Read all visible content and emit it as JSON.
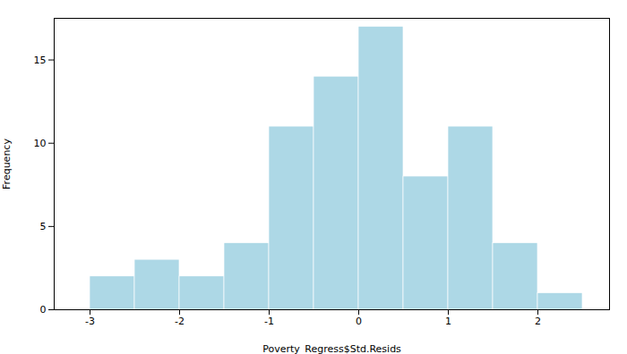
{
  "chart_data": {
    "type": "histogram",
    "bins": [
      -3.0,
      -2.5,
      -2.0,
      -1.5,
      -1.0,
      -0.5,
      0.0,
      0.5,
      1.0,
      1.5,
      2.0,
      2.5
    ],
    "values": [
      2,
      3,
      2,
      4,
      11,
      14,
      17,
      8,
      11,
      4,
      1
    ],
    "color": "#add8e6",
    "xlabel": "Poverty_Regress$Std.Resids",
    "ylabel": "Frequency",
    "xlim": [
      -3.4,
      2.8
    ],
    "ylim": [
      0,
      17.5
    ],
    "xticks": [
      -3,
      -2,
      -1,
      0,
      1,
      2
    ],
    "yticks": [
      0,
      5,
      10,
      15
    ]
  }
}
